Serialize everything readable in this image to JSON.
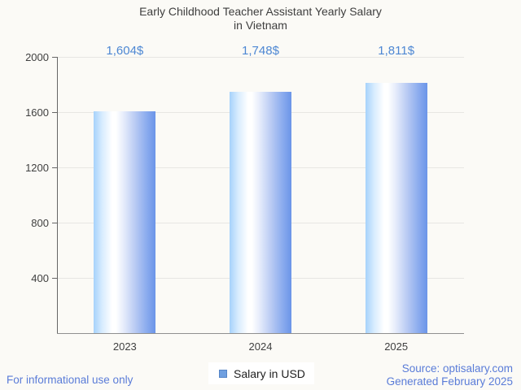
{
  "title": {
    "line1": "Early Childhood Teacher Assistant Yearly Salary",
    "line2": "in Vietnam"
  },
  "chart_data": {
    "type": "bar",
    "title": "Early Childhood Teacher Assistant Yearly Salary in Vietnam",
    "categories": [
      "2023",
      "2024",
      "2025"
    ],
    "series": [
      {
        "name": "Salary in USD",
        "values": [
          1604,
          1748,
          1811
        ]
      }
    ],
    "value_labels": [
      "1,604$",
      "1,748$",
      "1,811$"
    ],
    "xlabel": "",
    "ylabel": "",
    "ylim": [
      0,
      2000
    ],
    "y_ticks": [
      400,
      800,
      1200,
      1600,
      2000
    ],
    "grid": true,
    "legend_position": "bottom"
  },
  "legend": {
    "label": "Salary in USD",
    "swatch_color": "#6f9fe0",
    "swatch_border_color": "#5585c7"
  },
  "footer": {
    "disclaimer": "For informational use only",
    "source": "Source: optisalary.com",
    "generated": "Generated February 2025"
  },
  "colors": {
    "bar_light": "#a6d2fb",
    "bar_dark": "#6b95e8",
    "value_label_text": "#4d87d3",
    "footer_text": "#5a7cd8",
    "axis_line": "#666666",
    "baseline": "#8f8f8f",
    "grid_line": "#e7e6e3",
    "axis_text": "#3f3f3f",
    "title_text": "#3e3e3e",
    "background": "#fbfaf6"
  }
}
